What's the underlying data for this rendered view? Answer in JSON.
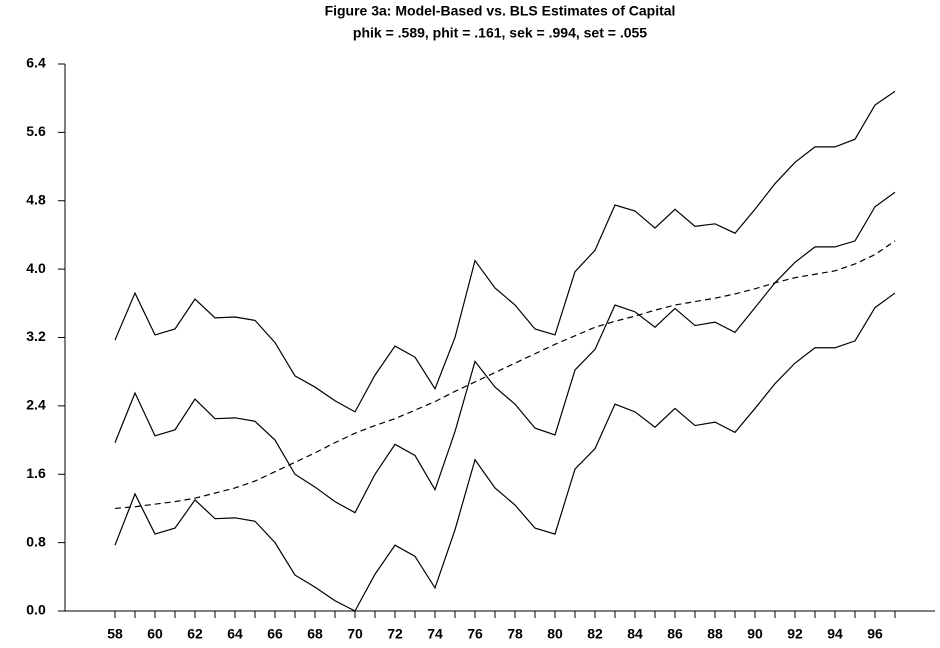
{
  "chart_data": {
    "type": "line",
    "title": "Figure 3a: Model-Based vs. BLS Estimates of Capital",
    "subtitle": "phik = .589, phit = .161, sek = .994, set = .055",
    "categories": [
      "58",
      null,
      "60",
      null,
      "62",
      null,
      "64",
      null,
      "66",
      null,
      "68",
      null,
      "70",
      null,
      "72",
      null,
      "74",
      null,
      "76",
      null,
      "78",
      null,
      "80",
      null,
      "82",
      null,
      "84",
      null,
      "86",
      null,
      "88",
      null,
      "90",
      null,
      "92",
      null,
      "94",
      null,
      "96",
      null
    ],
    "series": [
      {
        "color": "#000000",
        "dashed": false,
        "values": [
          3.17,
          3.72,
          3.23,
          3.3,
          3.65,
          3.43,
          3.44,
          3.4,
          3.14,
          2.75,
          2.62,
          2.46,
          2.33,
          2.76,
          3.1,
          2.97,
          2.6,
          3.2,
          4.1,
          3.78,
          3.58,
          3.3,
          3.23,
          3.97,
          4.22,
          4.75,
          4.68,
          4.48,
          4.7,
          4.5,
          4.53,
          4.42,
          4.7,
          5.0,
          5.25,
          5.43,
          5.43,
          5.52,
          5.92,
          6.08
        ]
      },
      {
        "color": "#000000",
        "dashed": false,
        "values": [
          1.97,
          2.55,
          2.05,
          2.12,
          2.48,
          2.25,
          2.26,
          2.22,
          2.0,
          1.6,
          1.45,
          1.28,
          1.15,
          1.6,
          1.95,
          1.82,
          1.42,
          2.1,
          2.92,
          2.62,
          2.42,
          2.14,
          2.06,
          2.82,
          3.06,
          3.58,
          3.5,
          3.32,
          3.54,
          3.34,
          3.38,
          3.26,
          3.55,
          3.84,
          4.08,
          4.26,
          4.26,
          4.33,
          4.73,
          4.9
        ]
      },
      {
        "color": "#000000",
        "dashed": false,
        "values": [
          0.77,
          1.37,
          0.9,
          0.97,
          1.3,
          1.08,
          1.09,
          1.05,
          0.8,
          0.42,
          0.28,
          0.12,
          0.0,
          0.43,
          0.77,
          0.64,
          0.27,
          0.95,
          1.77,
          1.44,
          1.24,
          0.97,
          0.9,
          1.66,
          1.9,
          2.42,
          2.33,
          2.15,
          2.37,
          2.17,
          2.21,
          2.09,
          2.37,
          2.66,
          2.9,
          3.08,
          3.08,
          3.16,
          3.55,
          3.72
        ]
      },
      {
        "color": "#000000",
        "dashed": true,
        "values": [
          1.2,
          1.22,
          1.25,
          1.28,
          1.32,
          1.38,
          1.44,
          1.52,
          1.63,
          1.74,
          1.85,
          1.97,
          2.08,
          2.17,
          2.25,
          2.35,
          2.45,
          2.57,
          2.68,
          2.79,
          2.9,
          3.01,
          3.12,
          3.22,
          3.32,
          3.39,
          3.45,
          3.52,
          3.58,
          3.62,
          3.66,
          3.71,
          3.77,
          3.84,
          3.9,
          3.94,
          3.98,
          4.06,
          4.17,
          4.33
        ]
      }
    ],
    "ylim": [
      0,
      6.4
    ],
    "yticks": [
      {
        "value": 0,
        "label": "0.0"
      },
      0.8,
      1.6,
      2.4,
      3.2,
      {
        "value": 4,
        "label": "4.0"
      },
      4.8,
      5.6,
      6.4
    ],
    "grid": false
  }
}
